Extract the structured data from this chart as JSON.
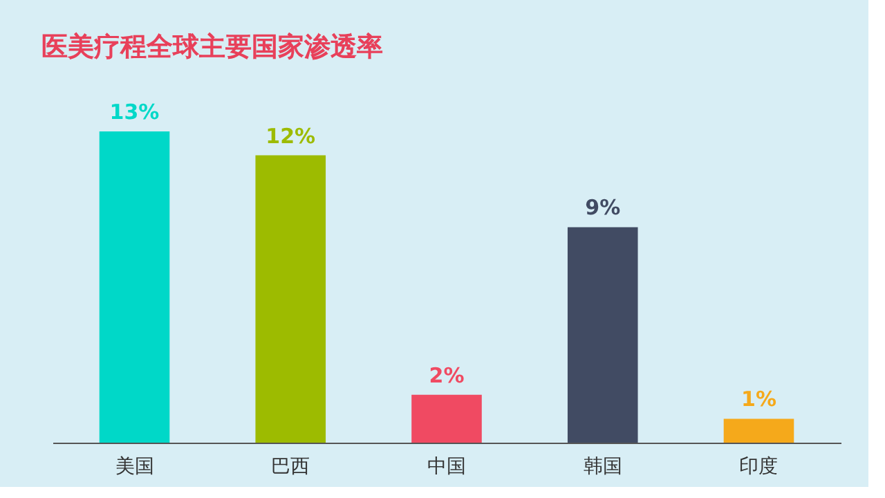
{
  "chart_data": {
    "type": "bar",
    "title": "医美疗程全球主要国家渗透率",
    "categories": [
      "美国",
      "巴西",
      "中国",
      "韩国",
      "印度"
    ],
    "values": [
      13,
      12,
      2,
      9,
      1
    ],
    "colors": [
      "#00d8c8",
      "#9dbb00",
      "#f04a62",
      "#414b63",
      "#f5a91b"
    ],
    "value_labels": [
      "13%",
      "12%",
      "2%",
      "9%",
      "1%"
    ],
    "tick_labels": "x"
  }
}
